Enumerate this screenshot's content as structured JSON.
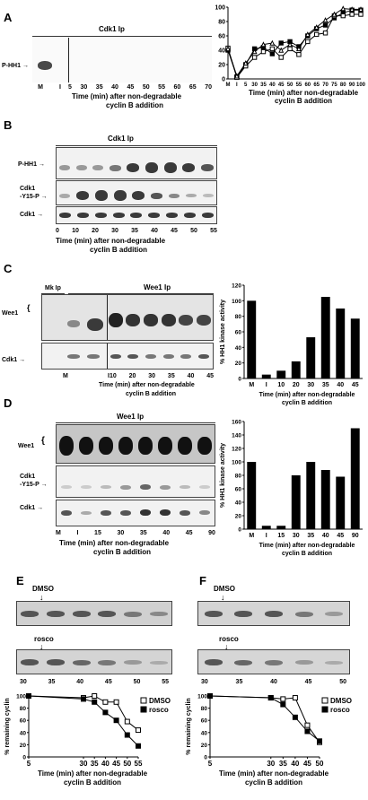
{
  "panelA": {
    "letter": "A",
    "header": "Cdk1 Ip",
    "row_label": "P-HH1",
    "lanes_left": [
      "M",
      "I"
    ],
    "lanes_right": [
      "5",
      "30",
      "35",
      "40",
      "45",
      "50",
      "55",
      "60",
      "65",
      "70"
    ],
    "xlabel_1": "Time (min) after non-degradable",
    "xlabel_2": "cyclin B  addition"
  },
  "panelA_chart": {
    "xlabel_1": "Time (min) after non-degradable",
    "xlabel_2": "cyclin B  addition"
  },
  "panelB": {
    "letter": "B",
    "header": "Cdk1 Ip",
    "row1": "P-HH1",
    "row2a": "Cdk1",
    "row2b": "-Y15-P",
    "row3": "Cdk1",
    "lanes": [
      "0",
      "10",
      "20",
      "30",
      "35",
      "40",
      "45",
      "50",
      "55"
    ],
    "xlabel_1": "Time (min) after non-degradable",
    "xlabel_2": "cyclin B  addition"
  },
  "panelC": {
    "letter": "C",
    "header_left": "Mk Ip",
    "header_right": "Wee1 Ip",
    "row1": "Wee1",
    "row2": "Cdk1",
    "lanes_left": [
      "M",
      "I"
    ],
    "lanes_right": [
      "10",
      "20",
      "30",
      "35",
      "40",
      "45"
    ],
    "xlabel_1": "Time (min) after non-degradable",
    "xlabel_2": "cyclin B  addition"
  },
  "panelC_chart": {
    "xlabel_1": "Time (min) after non-degradable",
    "xlabel_2": "cyclin B  addition"
  },
  "panelD": {
    "letter": "D",
    "header": "Wee1 Ip",
    "row1": "Wee1",
    "row2a": "Cdk1",
    "row2b": "-Y15-P",
    "row3": "Cdk1",
    "lanes": [
      "M",
      "I",
      "15",
      "30",
      "35",
      "40",
      "45",
      "90"
    ],
    "xlabel_1": "Time (min) after non-degradable",
    "xlabel_2": "cyclin B  addition"
  },
  "panelD_chart": {
    "xlabel_1": "Time (min) after non-degradable",
    "xlabel_2": "cyclin B  addition"
  },
  "panelE": {
    "letter": "E",
    "dmso": "DMSO",
    "rosco": "rosco",
    "lanes": [
      "30",
      "35",
      "40",
      "45",
      "50",
      "55"
    ]
  },
  "panelF": {
    "letter": "F",
    "dmso": "DMSO",
    "rosco": "rosco",
    "lanes": [
      "30",
      "35",
      "40",
      "45",
      "50"
    ]
  },
  "chart_data": [
    {
      "id": "A",
      "type": "line",
      "categories": [
        "M",
        "I",
        "5",
        "30",
        "35",
        "40",
        "45",
        "50",
        "55",
        "60",
        "65",
        "70",
        "75",
        "80",
        "90",
        "100"
      ],
      "ylim": [
        0,
        100
      ],
      "yticks": [
        0,
        20,
        40,
        60,
        80,
        100
      ],
      "xlabel": "Time (min) after non-degradable cyclin B  addition",
      "series": [
        {
          "marker": "filled-square",
          "values": [
            40,
            3,
            20,
            42,
            44,
            35,
            50,
            52,
            45,
            60,
            70,
            75,
            85,
            92,
            96,
            96
          ]
        },
        {
          "marker": "open-square",
          "values": [
            43,
            2,
            18,
            30,
            38,
            42,
            30,
            42,
            34,
            52,
            62,
            64,
            88,
            88,
            90,
            90
          ]
        },
        {
          "marker": "open-triangle",
          "values": [
            42,
            4,
            22,
            38,
            48,
            50,
            40,
            48,
            42,
            62,
            72,
            82,
            90,
            98,
            97,
            97
          ]
        }
      ]
    },
    {
      "id": "C",
      "type": "bar",
      "categories": [
        "M",
        "I",
        "10",
        "20",
        "30",
        "35",
        "40",
        "45"
      ],
      "values": [
        100,
        5,
        10,
        22,
        53,
        105,
        90,
        77
      ],
      "ylim": [
        0,
        120
      ],
      "yticks": [
        0,
        20,
        40,
        60,
        80,
        100,
        120
      ],
      "ylabel": "% HH1 kinase activity",
      "xlabel": "Time (min) after non-degradable cyclin B  addition"
    },
    {
      "id": "D",
      "type": "bar",
      "categories": [
        "M",
        "I",
        "15",
        "30",
        "35",
        "40",
        "45",
        "90"
      ],
      "values": [
        100,
        5,
        5,
        80,
        100,
        88,
        78,
        150
      ],
      "ylim": [
        0,
        160
      ],
      "yticks": [
        0,
        20,
        40,
        60,
        80,
        100,
        120,
        140,
        160
      ],
      "ylabel": "% HH1 kinase activity",
      "xlabel": "Time (min) after non-degradable cyclin B  addition"
    },
    {
      "id": "E",
      "type": "line",
      "x": [
        5,
        30,
        35,
        40,
        45,
        50,
        55
      ],
      "ylim": [
        0,
        100
      ],
      "yticks": [
        0,
        20,
        40,
        60,
        80,
        100
      ],
      "ylabel": "% remaining cyclin",
      "xlabel": "Time (min) after non-degradable cyclin B  addition",
      "legend": "right",
      "series": [
        {
          "name": "DMSO",
          "marker": "open-square",
          "values": [
            100,
            97,
            100,
            90,
            90,
            58,
            44
          ]
        },
        {
          "name": "rosco",
          "marker": "filled-square",
          "values": [
            100,
            95,
            90,
            73,
            60,
            36,
            18
          ]
        }
      ]
    },
    {
      "id": "F",
      "type": "line",
      "x": [
        5,
        30,
        35,
        40,
        45,
        50
      ],
      "ylim": [
        0,
        100
      ],
      "yticks": [
        0,
        20,
        40,
        60,
        80,
        100
      ],
      "ylabel": "% remaining cyclin",
      "xlabel": "Time (min) after non-degradable cyclin B  addition",
      "legend": "right",
      "series": [
        {
          "name": "DMSO",
          "marker": "open-square",
          "values": [
            100,
            97,
            95,
            97,
            52,
            24
          ]
        },
        {
          "name": "rosco",
          "marker": "filled-square",
          "values": [
            100,
            97,
            86,
            65,
            42,
            26
          ]
        }
      ]
    }
  ]
}
